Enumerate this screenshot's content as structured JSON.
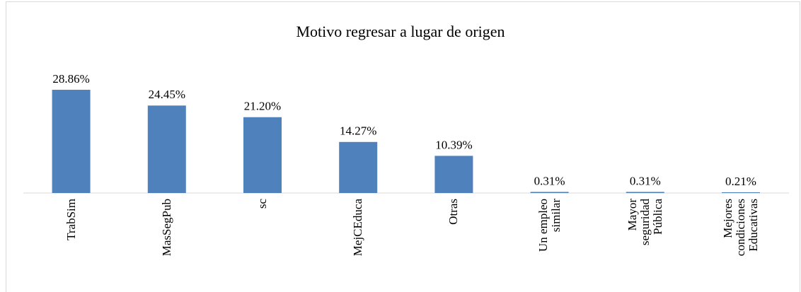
{
  "chart_data": {
    "type": "bar",
    "title": "Motivo regresar a lugar de origen",
    "categories": [
      "TrabSim",
      "MasSegPub",
      "sc",
      "MejCEduca",
      "Otras",
      "Un empleo similar",
      "Mayor seguridad Pública",
      "Mejores condiciones Educativas"
    ],
    "values": [
      28.86,
      24.45,
      21.2,
      14.27,
      10.39,
      0.31,
      0.31,
      0.21
    ],
    "value_labels": [
      "28.86%",
      "24.45%",
      "21.20%",
      "14.27%",
      "10.39%",
      "0.31%",
      "0.31%",
      "0.21%"
    ],
    "color": "#4f81bd"
  }
}
